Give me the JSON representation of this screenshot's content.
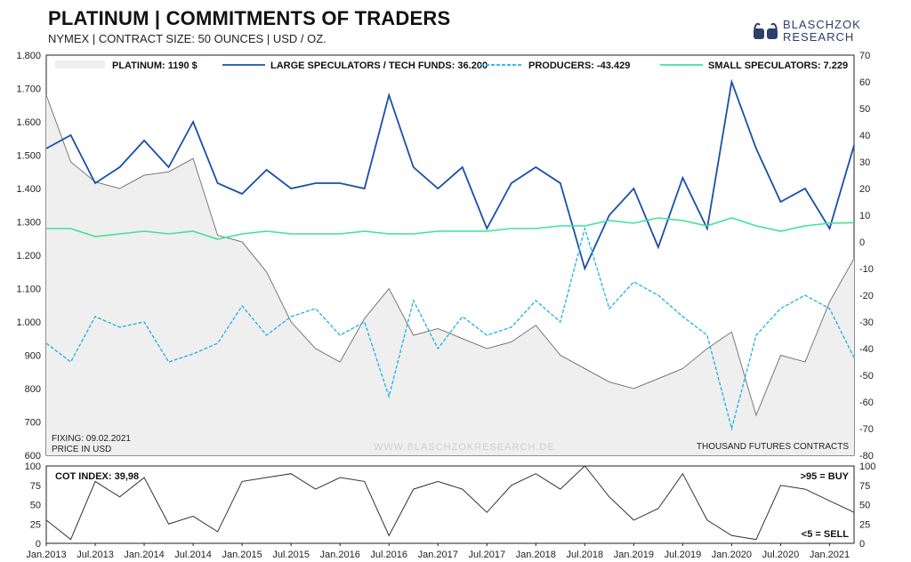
{
  "header": {
    "title": "PLATINUM | COMMITMENTS OF TRADERS",
    "subtitle": "NYMEX | CONTRACT SIZE: 50 OUNCES | USD / OZ."
  },
  "logo": {
    "line1": "BLASCHZOK",
    "line2": "RESEARCH"
  },
  "notes": {
    "fixing": "FIXING: 09.02.2021",
    "price_in": "PRICE IN USD",
    "watermark": "WWW.BLASCHZOKRESEARCH.DE",
    "units": "THOUSAND FUTURES CONTRACTS",
    "cot_index": "COT INDEX: 39,98",
    "buy": ">95 = BUY",
    "sell": "<5 = SELL"
  },
  "colors": {
    "platinum": "#7a7a7a",
    "platinum_fill": "#efefef",
    "large_spec": "#1a4fa8",
    "producers": "#1ab2e8",
    "small_spec": "#3de39a",
    "cot": "#333333",
    "cot_label": "#1a4fa8",
    "buy_label": "#1a4fa8",
    "sell_label": "#1ab2e8"
  },
  "chart_data": [
    {
      "type": "line",
      "title": "PLATINUM | COMMITMENTS OF TRADERS",
      "x": [
        "Jan.2013",
        "Apr.2013",
        "Jul.2013",
        "Oct.2013",
        "Jan.2014",
        "Apr.2014",
        "Jul.2014",
        "Oct.2014",
        "Jan.2015",
        "Apr.2015",
        "Jul.2015",
        "Oct.2015",
        "Jan.2016",
        "Apr.2016",
        "Jul.2016",
        "Oct.2016",
        "Jan.2017",
        "Apr.2017",
        "Jul.2017",
        "Oct.2017",
        "Jan.2018",
        "Apr.2018",
        "Jul.2018",
        "Oct.2018",
        "Jan.2019",
        "Apr.2019",
        "Jul.2019",
        "Oct.2019",
        "Jan.2020",
        "Apr.2020",
        "Jul.2020",
        "Oct.2020",
        "Jan.2021",
        "Feb.2021"
      ],
      "x_tick_labels": [
        "Jan.2013",
        "Jul.2013",
        "Jan.2014",
        "Jul.2014",
        "Jan.2015",
        "Jul.2015",
        "Jan.2016",
        "Jul.2016",
        "Jan.2017",
        "Jul.2017",
        "Jan.2018",
        "Jul.2018",
        "Jan.2019",
        "Jul.2019",
        "Jan.2020",
        "Jul.2020",
        "Jan.2021"
      ],
      "y_left": {
        "label": "",
        "range": [
          600,
          1800
        ],
        "ticks": [
          "600",
          "700",
          "800",
          "900",
          "1.000",
          "1.100",
          "1.200",
          "1.300",
          "1.400",
          "1.500",
          "1.600",
          "1.700",
          "1.800"
        ]
      },
      "y_right": {
        "label": "",
        "range": [
          -80,
          70
        ],
        "ticks": [
          "-80",
          "-70",
          "-60",
          "-50",
          "-40",
          "-30",
          "-20",
          "-10",
          "0",
          "10",
          "20",
          "30",
          "40",
          "50",
          "60",
          "70"
        ]
      },
      "legend_placement": "top",
      "series": [
        {
          "name": "PLATINUM: 1190 $",
          "axis": "left",
          "style": "area",
          "values": [
            1680,
            1480,
            1420,
            1400,
            1440,
            1450,
            1490,
            1260,
            1240,
            1150,
            1000,
            920,
            880,
            1010,
            1100,
            960,
            980,
            950,
            920,
            940,
            990,
            900,
            860,
            820,
            800,
            830,
            860,
            920,
            970,
            720,
            900,
            880,
            1060,
            1190
          ]
        },
        {
          "name": "LARGE SPECULATORS / TECH FUNDS: 36.200",
          "axis": "right",
          "style": "solid",
          "values": [
            35,
            40,
            22,
            28,
            38,
            28,
            45,
            22,
            18,
            27,
            20,
            22,
            22,
            20,
            55,
            28,
            20,
            28,
            5,
            22,
            28,
            22,
            -10,
            10,
            20,
            -2,
            24,
            5,
            60,
            35,
            15,
            20,
            5,
            36.2
          ]
        },
        {
          "name": "PRODUCERS: -43.429",
          "axis": "right",
          "style": "dashed",
          "values": [
            -38,
            -45,
            -28,
            -32,
            -30,
            -45,
            -42,
            -38,
            -24,
            -35,
            -28,
            -25,
            -35,
            -30,
            -58,
            -22,
            -40,
            -28,
            -35,
            -32,
            -22,
            -30,
            5,
            -25,
            -15,
            -20,
            -28,
            -35,
            -70,
            -35,
            -25,
            -20,
            -25,
            -43.4
          ]
        },
        {
          "name": "SMALL SPECULATORS: 7.229",
          "axis": "right",
          "style": "solid",
          "values": [
            5,
            5,
            2,
            3,
            4,
            3,
            4,
            1,
            3,
            4,
            3,
            3,
            3,
            4,
            3,
            3,
            4,
            4,
            4,
            5,
            5,
            6,
            6,
            8,
            7,
            9,
            8,
            6,
            9,
            6,
            4,
            6,
            7,
            7.2
          ]
        }
      ]
    },
    {
      "type": "line",
      "title": "COT INDEX: 39,98",
      "y_range": [
        0,
        100
      ],
      "y_ticks": [
        "0",
        "25",
        "50",
        "75",
        "100"
      ],
      "thresholds": {
        "buy": 95,
        "sell": 5
      },
      "x": [
        "Jan.2013",
        "Apr.2013",
        "Jul.2013",
        "Oct.2013",
        "Jan.2014",
        "Apr.2014",
        "Jul.2014",
        "Oct.2014",
        "Jan.2015",
        "Apr.2015",
        "Jul.2015",
        "Oct.2015",
        "Jan.2016",
        "Apr.2016",
        "Jul.2016",
        "Oct.2016",
        "Jan.2017",
        "Apr.2017",
        "Jul.2017",
        "Oct.2017",
        "Jan.2018",
        "Apr.2018",
        "Jul.2018",
        "Oct.2018",
        "Jan.2019",
        "Apr.2019",
        "Jul.2019",
        "Oct.2019",
        "Jan.2020",
        "Apr.2020",
        "Jul.2020",
        "Oct.2020",
        "Jan.2021",
        "Feb.2021"
      ],
      "series": [
        {
          "name": "COT INDEX",
          "values": [
            30,
            5,
            80,
            60,
            85,
            25,
            35,
            15,
            80,
            85,
            90,
            70,
            85,
            80,
            10,
            70,
            80,
            70,
            40,
            75,
            90,
            70,
            100,
            60,
            30,
            45,
            90,
            30,
            10,
            5,
            75,
            70,
            55,
            40
          ]
        }
      ]
    }
  ]
}
